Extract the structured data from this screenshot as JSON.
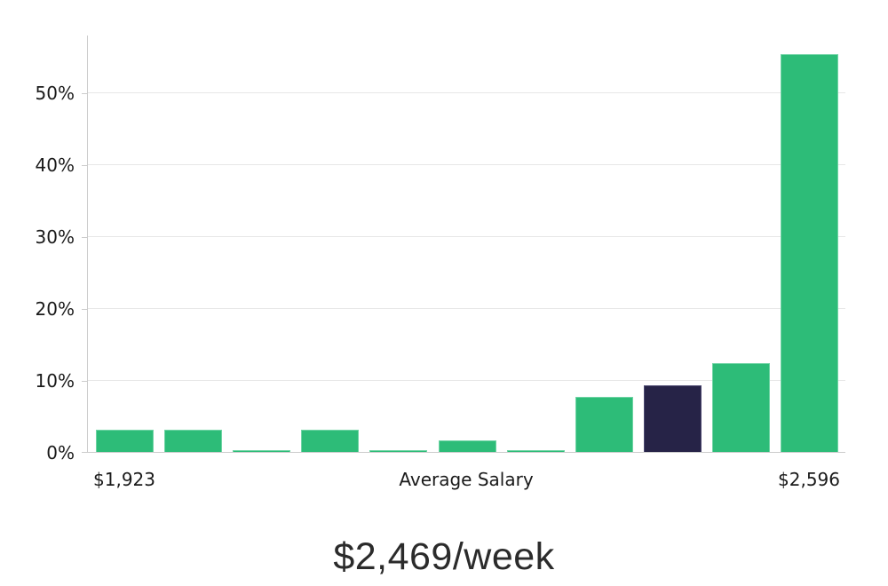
{
  "chart_data": {
    "type": "bar",
    "title": "$2,469/week",
    "xlabel": "",
    "ylabel": "",
    "ylim": [
      0,
      58
    ],
    "grid": true,
    "legend": false,
    "y_ticks": [
      0,
      10,
      20,
      30,
      40,
      50
    ],
    "y_tick_labels": [
      "0%",
      "10%",
      "20%",
      "30%",
      "40%",
      "50%"
    ],
    "x_tick_labels": [
      {
        "label": "$1,923",
        "bar_index": 0
      },
      {
        "label": "Average Salary",
        "bar_index": 5
      },
      {
        "label": "$2,596",
        "bar_index": 10
      }
    ],
    "values": [
      3.1,
      3.1,
      0.3,
      3.1,
      0.3,
      1.6,
      0.3,
      7.7,
      9.3,
      12.3,
      55.3
    ],
    "highlighted_index": 8,
    "colors": {
      "bar": "#2dbc78",
      "bar_border": "#6fd4a4",
      "highlight": "#262347",
      "highlight_border": "#4e4a72",
      "grid": "#e7e7e7",
      "axis": "#cccccc",
      "tick_text": "#1a1a1a",
      "title_text": "#2b2b2b"
    }
  }
}
